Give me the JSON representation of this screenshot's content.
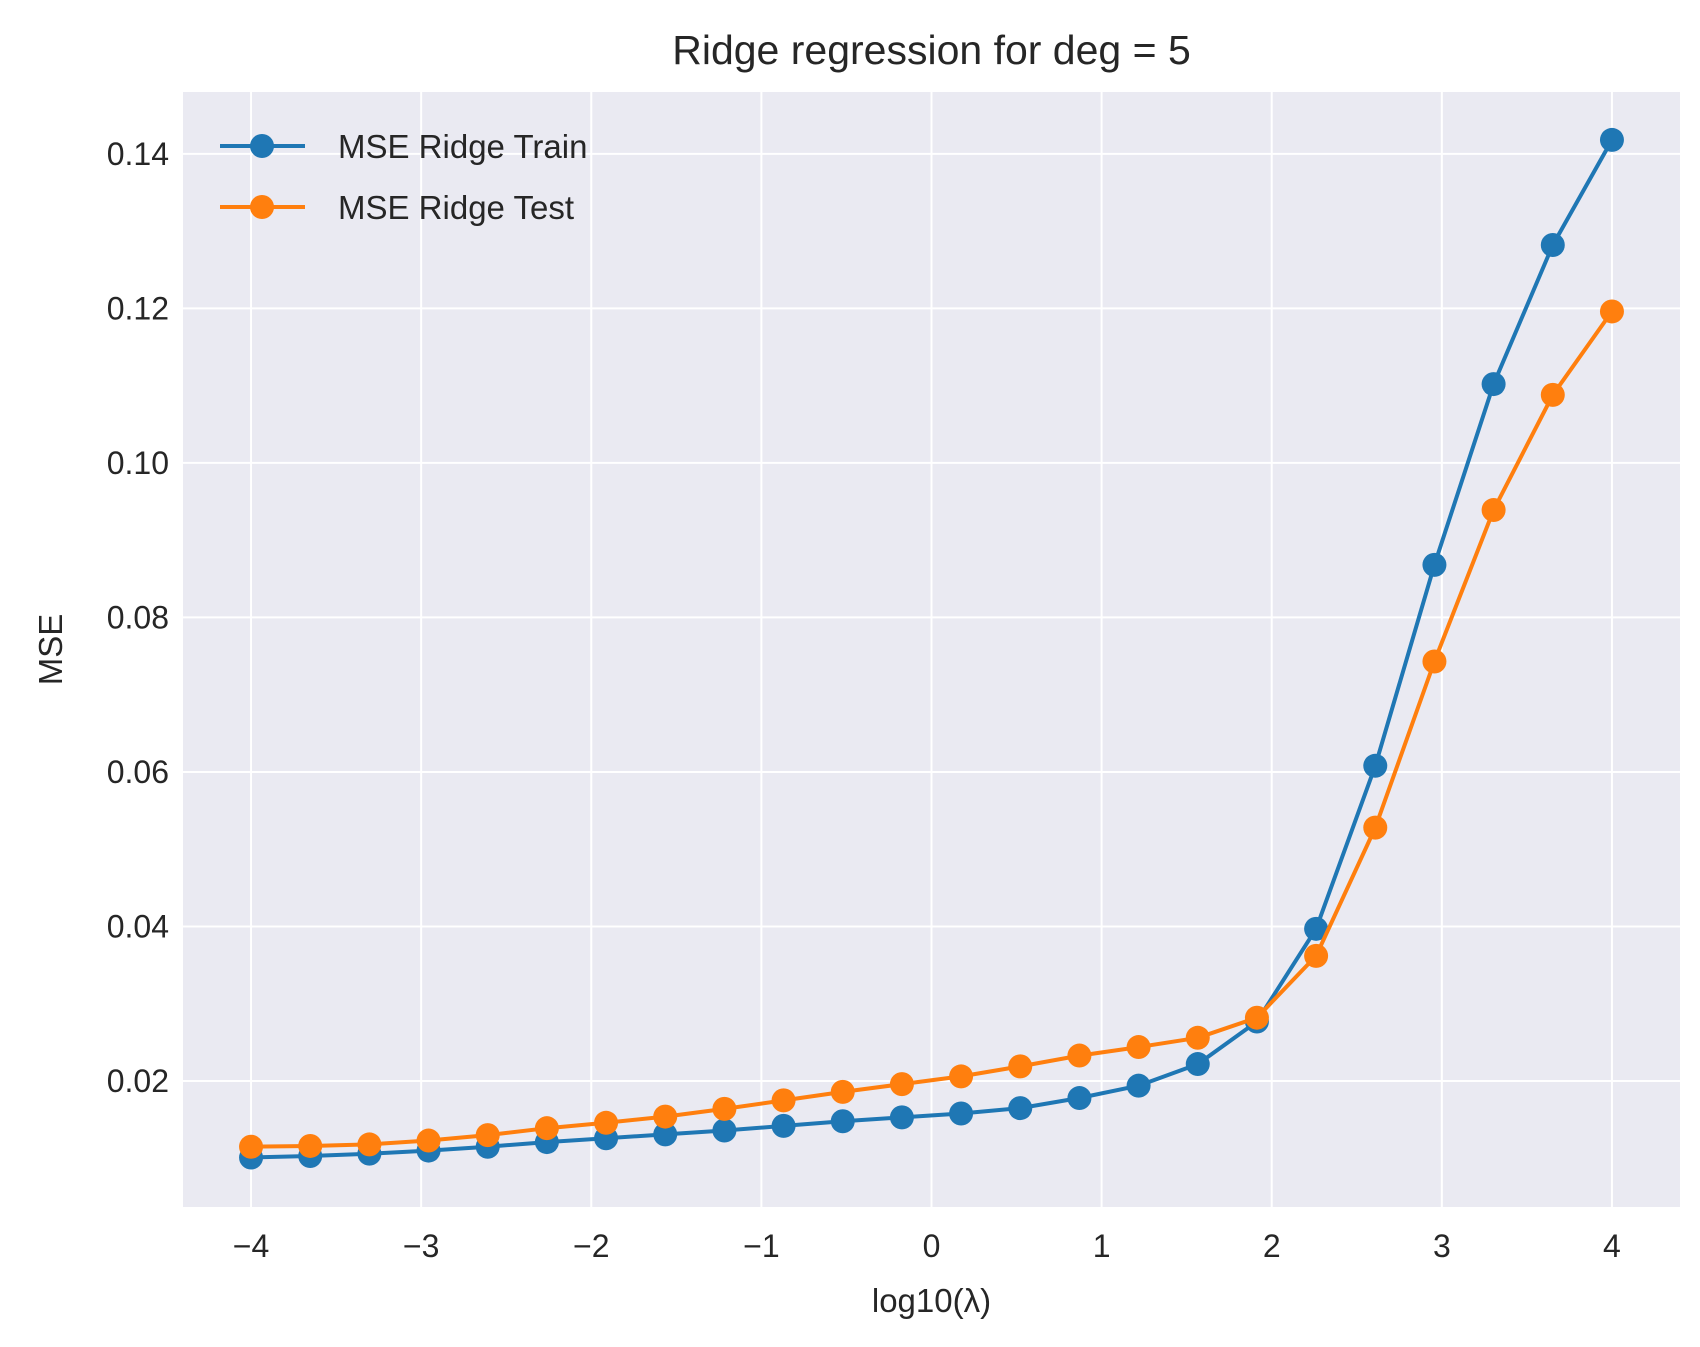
{
  "chart_data": {
    "type": "line",
    "title": "Ridge regression for deg = 5",
    "xlabel": "log10(λ)",
    "ylabel": "MSE",
    "xlim": [
      -4.4,
      4.4
    ],
    "ylim": [
      0.0037,
      0.148
    ],
    "x_ticks": [
      -4,
      -3,
      -2,
      -1,
      0,
      1,
      2,
      3,
      4
    ],
    "x_tick_labels": [
      "−4",
      "−3",
      "−2",
      "−1",
      "0",
      "1",
      "2",
      "3",
      "4"
    ],
    "y_ticks": [
      0.02,
      0.04,
      0.06,
      0.08,
      0.1,
      0.12,
      0.14
    ],
    "y_tick_labels": [
      "0.02",
      "0.04",
      "0.06",
      "0.08",
      "0.10",
      "0.12",
      "0.14"
    ],
    "grid": true,
    "legend_position": "upper-left",
    "background_color": "#eaeaf2",
    "x": [
      -4.0,
      -3.6522,
      -3.3043,
      -2.9565,
      -2.6087,
      -2.2609,
      -1.913,
      -1.5652,
      -1.2174,
      -0.8696,
      -0.5217,
      -0.1739,
      0.1739,
      0.5217,
      0.8696,
      1.2174,
      1.5652,
      1.913,
      2.2609,
      2.6087,
      2.9565,
      3.3043,
      3.6522,
      4.0
    ],
    "series": [
      {
        "name": "MSE Ridge Train",
        "color": "#1f77b4",
        "values": [
          0.0101,
          0.0103,
          0.0106,
          0.011,
          0.0115,
          0.0121,
          0.0126,
          0.0131,
          0.0136,
          0.0142,
          0.0148,
          0.0153,
          0.0158,
          0.0165,
          0.0178,
          0.0194,
          0.0222,
          0.0277,
          0.0397,
          0.0608,
          0.0868,
          0.1102,
          0.1282,
          0.1418
        ]
      },
      {
        "name": "MSE Ridge Test",
        "color": "#ff7f0e",
        "values": [
          0.0115,
          0.0116,
          0.0118,
          0.0123,
          0.013,
          0.0139,
          0.0146,
          0.0154,
          0.0164,
          0.0175,
          0.0186,
          0.0196,
          0.0206,
          0.0219,
          0.0233,
          0.0244,
          0.0256,
          0.0282,
          0.0362,
          0.0528,
          0.0743,
          0.0939,
          0.1088,
          0.1196
        ]
      }
    ]
  }
}
